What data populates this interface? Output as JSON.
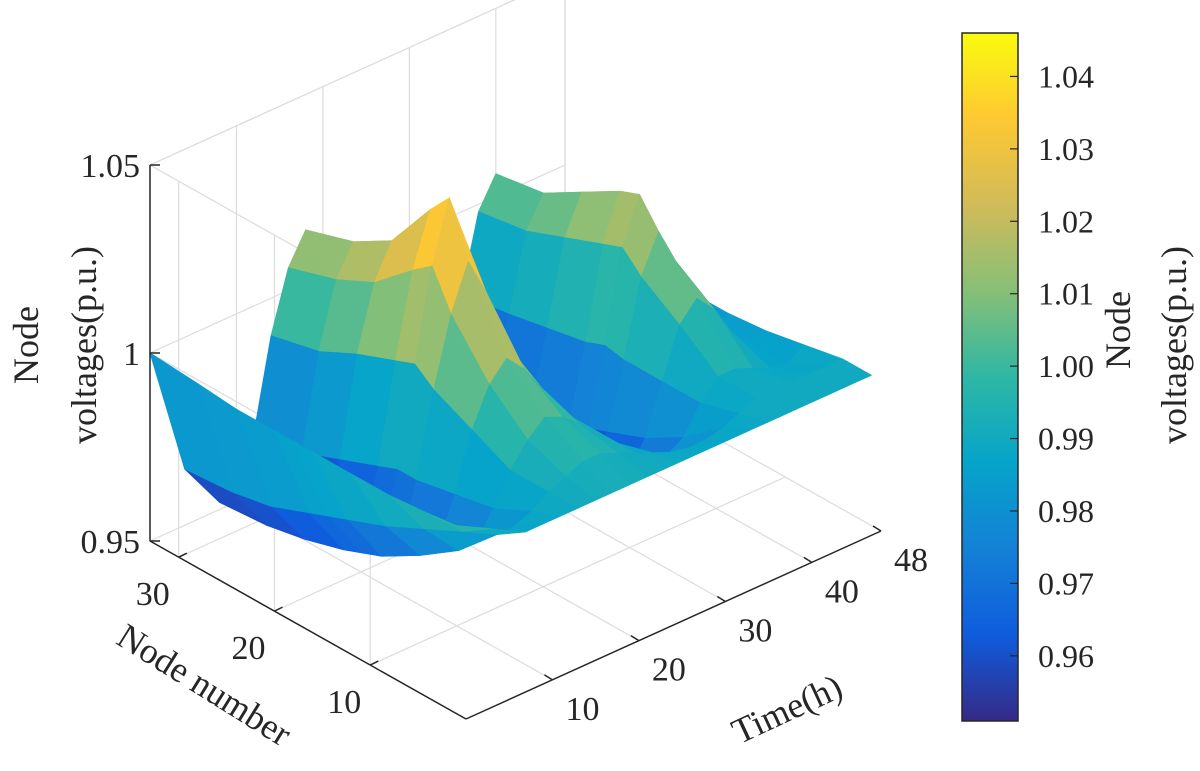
{
  "chart_data": {
    "type": "surface",
    "xlabel": "Time(h)",
    "ylabel": "Node number",
    "zlabel_lines": [
      "Node",
      "voltages(p.u.)"
    ],
    "x_ticks": [
      "10",
      "20",
      "30",
      "40",
      "48"
    ],
    "x_tick_values": [
      10,
      20,
      30,
      40,
      48
    ],
    "y_ticks": [
      "10",
      "20",
      "30"
    ],
    "y_tick_values": [
      10,
      20,
      30
    ],
    "z_ticks": [
      "0.95",
      "1",
      "1.05"
    ],
    "z_tick_values": [
      0.95,
      1.0,
      1.05
    ],
    "xlim": [
      0,
      48
    ],
    "ylim": [
      0,
      33
    ],
    "zlim": [
      0.95,
      1.05
    ],
    "grid": true,
    "colormap": [
      "#352a87",
      "#0f5cdd",
      "#1481d6",
      "#06a4ca",
      "#2eb7a4",
      "#87bf77",
      "#d1bb59",
      "#fec832",
      "#f9fb0e"
    ],
    "time_points": [
      0,
      4,
      8,
      10,
      12,
      14,
      16,
      18,
      20,
      22,
      24,
      26,
      28,
      30,
      32,
      34,
      36,
      38,
      40,
      42,
      44,
      46,
      48
    ],
    "node_points": [
      1,
      4,
      8,
      12,
      16,
      18,
      20,
      24,
      28,
      33
    ],
    "surface_rows": [
      {
        "node": 1,
        "v": [
          1.0,
          0.995,
          0.99,
          0.99,
          0.99,
          0.99,
          0.99,
          0.99,
          0.99,
          0.99,
          0.99,
          0.99,
          0.99,
          0.99,
          0.99,
          0.99,
          0.99,
          0.99,
          0.99,
          0.99,
          0.99,
          0.99,
          0.99
        ]
      },
      {
        "node": 4,
        "v": [
          0.999,
          0.99,
          0.985,
          0.985,
          0.987,
          0.99,
          0.992,
          0.994,
          0.994,
          0.992,
          0.99,
          0.988,
          0.986,
          0.985,
          0.985,
          0.986,
          0.988,
          0.99,
          0.99,
          0.99,
          0.99,
          0.99,
          0.99
        ]
      },
      {
        "node": 8,
        "v": [
          0.998,
          0.985,
          0.975,
          0.975,
          0.982,
          0.99,
          0.996,
          1.0,
          0.998,
          0.994,
          0.99,
          0.985,
          0.978,
          0.975,
          0.975,
          0.978,
          0.985,
          0.99,
          0.99,
          0.988,
          0.986,
          0.985,
          0.988
        ]
      },
      {
        "node": 12,
        "v": [
          0.998,
          0.98,
          0.968,
          0.968,
          0.98,
          0.995,
          1.005,
          1.01,
          1.005,
          0.998,
          0.99,
          0.98,
          0.97,
          0.965,
          0.965,
          0.972,
          0.985,
          0.998,
          1.003,
          0.998,
          0.99,
          0.985,
          0.986
        ]
      },
      {
        "node": 16,
        "v": [
          0.998,
          0.976,
          0.962,
          0.962,
          0.978,
          1.0,
          1.018,
          1.03,
          1.02,
          1.005,
          0.99,
          0.975,
          0.963,
          0.958,
          0.958,
          0.968,
          0.985,
          1.005,
          1.015,
          1.005,
          0.99,
          0.982,
          0.985
        ]
      },
      {
        "node": 18,
        "v": [
          0.998,
          0.974,
          0.96,
          0.96,
          0.978,
          1.004,
          1.028,
          1.044,
          1.03,
          1.01,
          0.99,
          0.972,
          0.96,
          0.955,
          0.955,
          0.966,
          0.986,
          1.01,
          1.022,
          1.008,
          0.99,
          0.98,
          0.985
        ]
      },
      {
        "node": 20,
        "v": [
          0.998,
          0.972,
          0.958,
          0.958,
          0.976,
          1.002,
          1.024,
          1.038,
          1.024,
          1.006,
          0.988,
          0.97,
          0.958,
          0.953,
          0.953,
          0.964,
          0.984,
          1.008,
          1.02,
          1.006,
          0.988,
          0.978,
          0.984
        ]
      },
      {
        "node": 24,
        "v": [
          0.998,
          0.968,
          0.955,
          0.955,
          0.972,
          0.998,
          1.015,
          1.024,
          1.014,
          0.998,
          0.983,
          0.967,
          0.956,
          0.952,
          0.952,
          0.962,
          0.982,
          1.004,
          1.014,
          1.0,
          0.984,
          0.976,
          0.983
        ]
      },
      {
        "node": 28,
        "v": [
          0.999,
          0.966,
          0.953,
          0.953,
          0.968,
          0.993,
          1.01,
          1.018,
          1.008,
          0.993,
          0.98,
          0.965,
          0.955,
          0.951,
          0.951,
          0.96,
          0.98,
          1.0,
          1.008,
          0.996,
          0.982,
          0.975,
          0.983
        ]
      },
      {
        "node": 33,
        "v": [
          1.0,
          0.965,
          0.952,
          0.952,
          0.966,
          0.99,
          1.006,
          1.014,
          1.004,
          0.99,
          0.978,
          0.964,
          0.954,
          0.95,
          0.95,
          0.959,
          0.978,
          0.998,
          1.006,
          0.994,
          0.981,
          0.975,
          0.983
        ]
      }
    ],
    "colorbar": {
      "range": [
        0.951,
        1.046
      ],
      "ticks": [
        "0.96",
        "0.97",
        "0.98",
        "0.99",
        "1.00",
        "1.01",
        "1.02",
        "1.03",
        "1.04"
      ],
      "tick_values": [
        0.96,
        0.97,
        0.98,
        0.99,
        1.0,
        1.01,
        1.02,
        1.03,
        1.04
      ],
      "label_lines": [
        "Node",
        "voltages(p.u.)"
      ]
    }
  }
}
